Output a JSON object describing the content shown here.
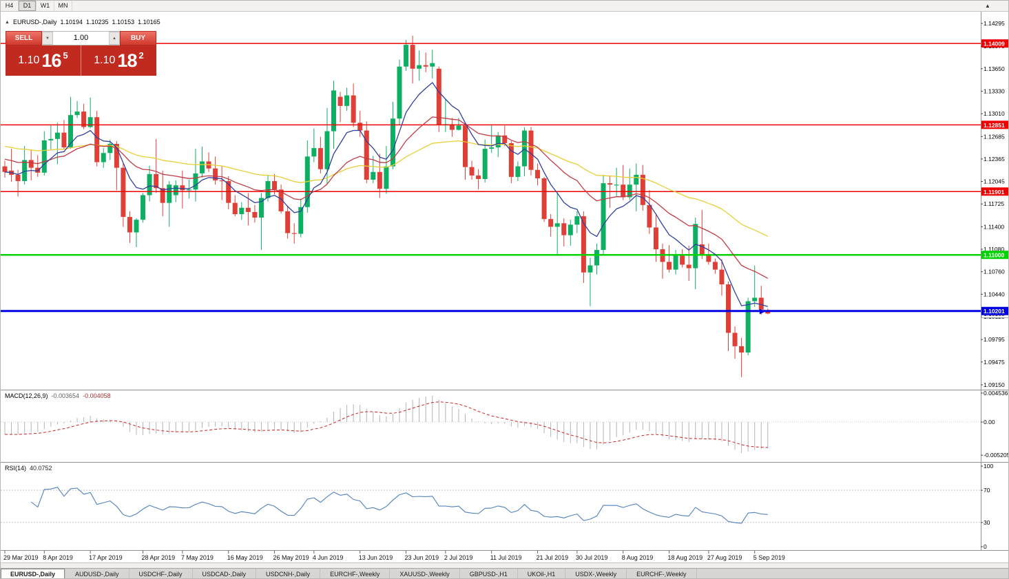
{
  "toolbar": {
    "periods": [
      "H4",
      "D1",
      "W1",
      "MN"
    ],
    "active_period": "D1",
    "shift_marker_icon": "▲"
  },
  "chart_header": {
    "collapse_icon": "▲",
    "symbol_title": "EURUSD-,Daily",
    "ohlc": {
      "open": "1.10194",
      "high": "1.10235",
      "low": "1.10153",
      "close": "1.10165"
    }
  },
  "trade_panel": {
    "sell_label": "SELL",
    "buy_label": "BUY",
    "volume": "1.00",
    "volume_down_icon": "▼",
    "volume_up_icon": "▲",
    "sell_price": {
      "main": "1.10",
      "big": "16",
      "sup": "5"
    },
    "buy_price": {
      "main": "1.10",
      "big": "18",
      "sup": "2"
    }
  },
  "indicators": {
    "macd": {
      "label": "MACD(12,26,9)",
      "value_main": "-0.003654",
      "value_signal": "-0.004058",
      "axis": [
        "0.004536",
        "0.00",
        "-0.005205"
      ]
    },
    "rsi": {
      "label": "RSI(14)",
      "value": "40.0752",
      "axis": [
        "100",
        "70",
        "30",
        "0"
      ],
      "levels": [
        70,
        30
      ]
    }
  },
  "tabs": [
    "EURUSD-,Daily",
    "AUDUSD-,Daily",
    "USDCHF-,Daily",
    "USDCAD-,Daily",
    "USDCNH-,Daily",
    "EURCHF-,Weekly",
    "XAUUSD-,Weekly",
    "GBPUSD-,H1",
    "UKOil-,H1",
    "USDX-,Weekly",
    "EURCHF-,Weekly"
  ],
  "active_tab_index": 0,
  "chart_data": {
    "type": "candlestick",
    "symbol": "EURUSD",
    "timeframe": "Daily",
    "price_range": [
      1.0915,
      1.14295
    ],
    "bull_color": "#0faf63",
    "bear_color": "#de4037",
    "price_axis_labels": [
      "1.14295",
      "1.13970",
      "1.13650",
      "1.13330",
      "1.13010",
      "1.12685",
      "1.12365",
      "1.12045",
      "1.11725",
      "1.11400",
      "1.11080",
      "1.10760",
      "1.10440",
      "1.10120",
      "1.09795",
      "1.09475",
      "1.09150"
    ],
    "bid_tag": {
      "label": "1.10165",
      "price": 1.10165
    },
    "levels": [
      {
        "price": 1.14009,
        "label": "1.14009",
        "color": "#f00000",
        "line_width": 1.5
      },
      {
        "price": 1.12851,
        "label": "1.12851",
        "color": "#f00000",
        "line_width": 1.5
      },
      {
        "price": 1.11901,
        "label": "1.11901",
        "color": "#f00000",
        "line_width": 1.5
      },
      {
        "price": 1.11,
        "label": "1.11000",
        "color": "#00d300",
        "line_width": 2.5
      },
      {
        "price": 1.10201,
        "label": "1.10201",
        "color": "#0000e0",
        "line_width": 3
      }
    ],
    "moving_averages": [
      {
        "name": "ma-slow",
        "period": 50,
        "color": "#e8cf35",
        "start_value": 1.1256
      },
      {
        "name": "ma-medium",
        "period": 21,
        "color": "#c23a44",
        "start_value": 1.1238
      },
      {
        "name": "ma-fast",
        "period": 8,
        "color": "#2e3f9e",
        "start_value": 1.1218
      }
    ],
    "date_labels": [
      {
        "text": "29 Mar 2019",
        "i": 0
      },
      {
        "text": "8 Apr 2019",
        "i": 6
      },
      {
        "text": "17 Apr 2019",
        "i": 13
      },
      {
        "text": "28 Apr 2019",
        "i": 21
      },
      {
        "text": "7 May 2019",
        "i": 27
      },
      {
        "text": "16 May 2019",
        "i": 34
      },
      {
        "text": "26 May 2019",
        "i": 41
      },
      {
        "text": "4 Jun 2019",
        "i": 47
      },
      {
        "text": "13 Jun 2019",
        "i": 54
      },
      {
        "text": "23 Jun 2019",
        "i": 61
      },
      {
        "text": "2 Jul 2019",
        "i": 67
      },
      {
        "text": "11 Jul 2019",
        "i": 74
      },
      {
        "text": "21 Jul 2019",
        "i": 81
      },
      {
        "text": "30 Jul 2019",
        "i": 87
      },
      {
        "text": "8 Aug 2019",
        "i": 94
      },
      {
        "text": "18 Aug 2019",
        "i": 101
      },
      {
        "text": "27 Aug 2019",
        "i": 107
      },
      {
        "text": "5 Sep 2019",
        "i": 114
      }
    ],
    "candles": [
      [
        1.1226,
        1.1234,
        1.121,
        1.1218
      ],
      [
        1.122,
        1.1251,
        1.1204,
        1.1214
      ],
      [
        1.1214,
        1.1221,
        1.1183,
        1.1205
      ],
      [
        1.1205,
        1.1255,
        1.12,
        1.1235
      ],
      [
        1.1235,
        1.1249,
        1.1206,
        1.1224
      ],
      [
        1.1224,
        1.1242,
        1.1211,
        1.1217
      ],
      [
        1.1217,
        1.1276,
        1.1213,
        1.1263
      ],
      [
        1.1263,
        1.1285,
        1.125,
        1.1265
      ],
      [
        1.1265,
        1.1288,
        1.1229,
        1.1274
      ],
      [
        1.1274,
        1.1292,
        1.125,
        1.1253
      ],
      [
        1.1253,
        1.1325,
        1.1251,
        1.1299
      ],
      [
        1.1299,
        1.1319,
        1.1295,
        1.1304
      ],
      [
        1.1304,
        1.1315,
        1.1279,
        1.1282
      ],
      [
        1.1282,
        1.1324,
        1.128,
        1.1296
      ],
      [
        1.1296,
        1.1305,
        1.1226,
        1.1232
      ],
      [
        1.1232,
        1.1252,
        1.1224,
        1.1245
      ],
      [
        1.1245,
        1.1264,
        1.1235,
        1.1258
      ],
      [
        1.1258,
        1.1262,
        1.1192,
        1.1224
      ],
      [
        1.1224,
        1.123,
        1.114,
        1.1154
      ],
      [
        1.1154,
        1.1162,
        1.1117,
        1.1132
      ],
      [
        1.1132,
        1.1152,
        1.1111,
        1.115
      ],
      [
        1.115,
        1.1188,
        1.1146,
        1.1185
      ],
      [
        1.1185,
        1.1227,
        1.1176,
        1.1215
      ],
      [
        1.1215,
        1.1265,
        1.1188,
        1.1195
      ],
      [
        1.1195,
        1.122,
        1.1155,
        1.1174
      ],
      [
        1.1174,
        1.1205,
        1.114,
        1.12
      ],
      [
        1.1185,
        1.1206,
        1.1175,
        1.1199
      ],
      [
        1.1199,
        1.122,
        1.1166,
        1.1192
      ],
      [
        1.1192,
        1.1207,
        1.118,
        1.1193
      ],
      [
        1.1193,
        1.1251,
        1.1176,
        1.1216
      ],
      [
        1.1216,
        1.1254,
        1.121,
        1.1233
      ],
      [
        1.1233,
        1.1246,
        1.1218,
        1.1223
      ],
      [
        1.1223,
        1.124,
        1.12,
        1.1206
      ],
      [
        1.1206,
        1.1226,
        1.1178,
        1.1205
      ],
      [
        1.1205,
        1.1212,
        1.1165,
        1.1174
      ],
      [
        1.1174,
        1.1185,
        1.1155,
        1.1158
      ],
      [
        1.1158,
        1.1175,
        1.115,
        1.1167
      ],
      [
        1.1167,
        1.1188,
        1.1142,
        1.1161
      ],
      [
        1.1161,
        1.1171,
        1.1146,
        1.1153
      ],
      [
        1.1153,
        1.1188,
        1.1107,
        1.1181
      ],
      [
        1.1181,
        1.1213,
        1.1176,
        1.1205
      ],
      [
        1.1205,
        1.1215,
        1.1186,
        1.1193
      ],
      [
        1.1193,
        1.12,
        1.1159,
        1.1162
      ],
      [
        1.1162,
        1.117,
        1.1123,
        1.1131
      ],
      [
        1.1131,
        1.1145,
        1.1116,
        1.113
      ],
      [
        1.113,
        1.118,
        1.1125,
        1.1168
      ],
      [
        1.1168,
        1.1263,
        1.116,
        1.124
      ],
      [
        1.124,
        1.128,
        1.1232,
        1.1252
      ],
      [
        1.1252,
        1.1268,
        1.1216,
        1.1222
      ],
      [
        1.1222,
        1.1309,
        1.1201,
        1.1276
      ],
      [
        1.1276,
        1.1348,
        1.1251,
        1.1334
      ],
      [
        1.1325,
        1.1332,
        1.1289,
        1.1312
      ],
      [
        1.1312,
        1.1338,
        1.1305,
        1.1327
      ],
      [
        1.1327,
        1.1344,
        1.1282,
        1.1288
      ],
      [
        1.1288,
        1.1305,
        1.1268,
        1.1277
      ],
      [
        1.1277,
        1.129,
        1.1202,
        1.1207
      ],
      [
        1.1207,
        1.1241,
        1.1202,
        1.1218
      ],
      [
        1.1218,
        1.1244,
        1.1181,
        1.1194
      ],
      [
        1.1194,
        1.1255,
        1.1187,
        1.1226
      ],
      [
        1.1226,
        1.1318,
        1.1222,
        1.1294
      ],
      [
        1.1294,
        1.1378,
        1.1285,
        1.1368
      ],
      [
        1.1368,
        1.1406,
        1.1362,
        1.1399
      ],
      [
        1.1399,
        1.1412,
        1.1344,
        1.1365
      ],
      [
        1.1365,
        1.1391,
        1.1348,
        1.137
      ],
      [
        1.137,
        1.1388,
        1.136,
        1.1368
      ],
      [
        1.1368,
        1.1392,
        1.1351,
        1.1373
      ],
      [
        1.1365,
        1.1368,
        1.1275,
        1.1285
      ],
      [
        1.1285,
        1.1322,
        1.1275,
        1.1286
      ],
      [
        1.1286,
        1.1295,
        1.1268,
        1.1278
      ],
      [
        1.1278,
        1.1295,
        1.1277,
        1.1284
      ],
      [
        1.1284,
        1.1288,
        1.1207,
        1.1225
      ],
      [
        1.1225,
        1.1234,
        1.1207,
        1.1213
      ],
      [
        1.1213,
        1.1222,
        1.1193,
        1.1208
      ],
      [
        1.1208,
        1.1264,
        1.1203,
        1.1251
      ],
      [
        1.1251,
        1.1286,
        1.1245,
        1.1253
      ],
      [
        1.1253,
        1.1275,
        1.1239,
        1.127
      ],
      [
        1.127,
        1.1284,
        1.1255,
        1.1259
      ],
      [
        1.1259,
        1.1262,
        1.1202,
        1.1211
      ],
      [
        1.1211,
        1.1233,
        1.1205,
        1.1226
      ],
      [
        1.1226,
        1.1282,
        1.1212,
        1.1277
      ],
      [
        1.1277,
        1.1282,
        1.1213,
        1.1221
      ],
      [
        1.1221,
        1.123,
        1.1199,
        1.1209
      ],
      [
        1.1209,
        1.1211,
        1.1147,
        1.1151
      ],
      [
        1.1151,
        1.1158,
        1.1126,
        1.114
      ],
      [
        1.114,
        1.1188,
        1.1101,
        1.1145
      ],
      [
        1.1145,
        1.1152,
        1.1112,
        1.1128
      ],
      [
        1.1128,
        1.115,
        1.1113,
        1.1143
      ],
      [
        1.1143,
        1.1162,
        1.1131,
        1.1155
      ],
      [
        1.1155,
        1.1162,
        1.106,
        1.1075
      ],
      [
        1.1075,
        1.1096,
        1.1027,
        1.1085
      ],
      [
        1.1085,
        1.1116,
        1.1072,
        1.1107
      ],
      [
        1.1107,
        1.1214,
        1.1101,
        1.1202
      ],
      [
        1.1202,
        1.1213,
        1.1167,
        1.12
      ],
      [
        1.12,
        1.1224,
        1.1183,
        1.12
      ],
      [
        1.12,
        1.1228,
        1.1178,
        1.1182
      ],
      [
        1.1182,
        1.1223,
        1.1178,
        1.12
      ],
      [
        1.12,
        1.123,
        1.1162,
        1.1214
      ],
      [
        1.1214,
        1.1228,
        1.1163,
        1.1171
      ],
      [
        1.1171,
        1.1192,
        1.113,
        1.1139
      ],
      [
        1.1139,
        1.1158,
        1.109,
        1.1108
      ],
      [
        1.1108,
        1.1116,
        1.1066,
        1.109
      ],
      [
        1.109,
        1.1114,
        1.1075,
        1.1079
      ],
      [
        1.1079,
        1.1107,
        1.1072,
        1.11
      ],
      [
        1.11,
        1.1108,
        1.1082,
        1.1086
      ],
      [
        1.1086,
        1.1113,
        1.1063,
        1.1081
      ],
      [
        1.1081,
        1.1153,
        1.1051,
        1.1144
      ],
      [
        1.1115,
        1.1164,
        1.1094,
        1.1101
      ],
      [
        1.1101,
        1.1116,
        1.1086,
        1.109
      ],
      [
        1.109,
        1.1095,
        1.1073,
        1.1079
      ],
      [
        1.1079,
        1.1094,
        1.1042,
        1.1058
      ],
      [
        1.1058,
        1.1062,
        1.0963,
        1.0989
      ],
      [
        1.0989,
        1.0998,
        1.0952,
        1.097
      ],
      [
        1.097,
        1.0982,
        1.0926,
        1.0961
      ],
      [
        1.0961,
        1.1039,
        1.0957,
        1.1034
      ],
      [
        1.1034,
        1.1085,
        1.1026,
        1.1039
      ],
      [
        1.1039,
        1.1056,
        1.1015,
        1.1022
      ],
      [
        1.10194,
        1.10235,
        1.10153,
        1.10165
      ]
    ]
  }
}
